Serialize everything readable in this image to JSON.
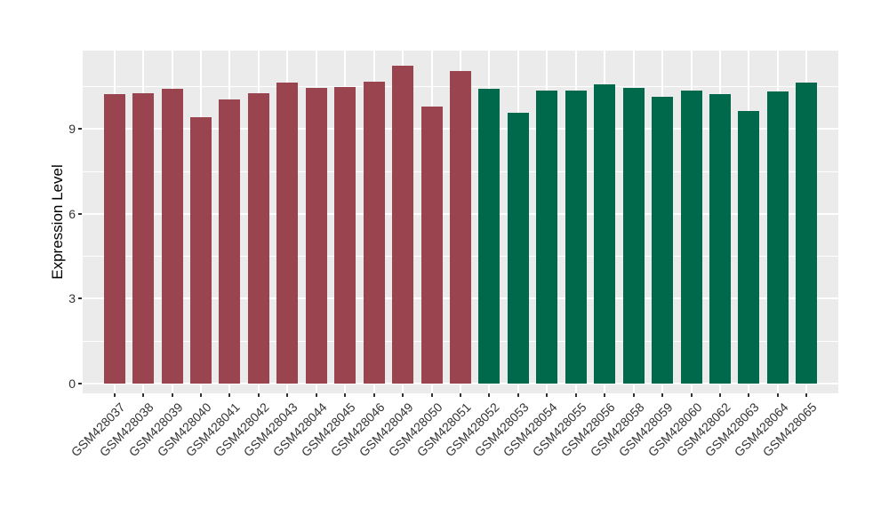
{
  "chart_data": {
    "type": "bar",
    "title": "",
    "xlabel": "",
    "ylabel": "Expression Level",
    "ylim": [
      0,
      11.8
    ],
    "y_major_ticks": [
      0,
      3,
      6,
      9
    ],
    "y_minor_gridlines": [
      1.5,
      4.5,
      7.5,
      10.5
    ],
    "grid": "on",
    "legend_position": "none",
    "panel_bg_color": "#EBEBEB",
    "gridline_color": "#FFFFFF",
    "group_colors": {
      "left_group": "#9A4450",
      "right_group": "#00694C"
    },
    "categories": [
      "GSM428037",
      "GSM428038",
      "GSM428039",
      "GSM428040",
      "GSM428041",
      "GSM428042",
      "GSM428043",
      "GSM428044",
      "GSM428045",
      "GSM428046",
      "GSM428049",
      "GSM428050",
      "GSM428051",
      "GSM428052",
      "GSM428053",
      "GSM428054",
      "GSM428055",
      "GSM428056",
      "GSM428058",
      "GSM428059",
      "GSM428060",
      "GSM428062",
      "GSM428063",
      "GSM428064",
      "GSM428065"
    ],
    "values": [
      10.22,
      10.25,
      10.42,
      9.39,
      10.02,
      10.24,
      10.63,
      10.44,
      10.47,
      10.65,
      11.23,
      9.79,
      11.05,
      10.42,
      9.55,
      10.33,
      10.36,
      10.55,
      10.44,
      10.14,
      10.33,
      10.22,
      9.61,
      10.31,
      10.63
    ],
    "bar_colors": [
      "#9A4450",
      "#9A4450",
      "#9A4450",
      "#9A4450",
      "#9A4450",
      "#9A4450",
      "#9A4450",
      "#9A4450",
      "#9A4450",
      "#9A4450",
      "#9A4450",
      "#9A4450",
      "#9A4450",
      "#00694C",
      "#00694C",
      "#00694C",
      "#00694C",
      "#00694C",
      "#00694C",
      "#00694C",
      "#00694C",
      "#00694C",
      "#00694C",
      "#00694C",
      "#00694C"
    ]
  }
}
